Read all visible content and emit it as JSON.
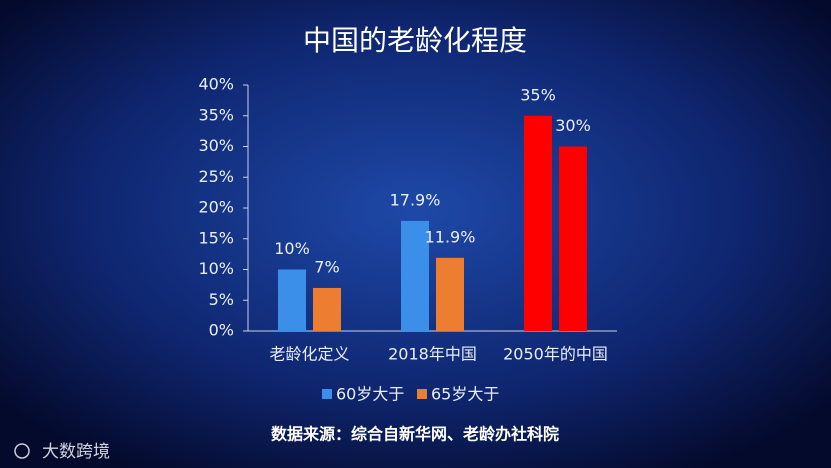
{
  "chart_data": {
    "type": "bar",
    "title": "中国的老龄化程度",
    "categories": [
      "老龄化定义",
      "2018年中国",
      "2050年的中国"
    ],
    "series": [
      {
        "name": "60岁大于",
        "color": "#3b8fe8",
        "bar_colors": [
          "#3b8fe8",
          "#3b8fe8",
          "#ff0000"
        ],
        "values": [
          10,
          17.9,
          35
        ],
        "value_labels": [
          "10%",
          "17.9%",
          "35%"
        ]
      },
      {
        "name": "65岁大于",
        "color": "#ed7d31",
        "bar_colors": [
          "#ed7d31",
          "#ed7d31",
          "#ff0000"
        ],
        "values": [
          7,
          11.9,
          30
        ],
        "value_labels": [
          "7%",
          "11.9%",
          "30%"
        ]
      }
    ],
    "ylim": [
      0,
      40
    ],
    "yticks": [
      {
        "value": 0,
        "label": "0%"
      },
      {
        "value": 5,
        "label": "5%"
      },
      {
        "value": 10,
        "label": "10%"
      },
      {
        "value": 15,
        "label": "15%"
      },
      {
        "value": 20,
        "label": "20%"
      },
      {
        "value": 25,
        "label": "25%"
      },
      {
        "value": 30,
        "label": "30%"
      },
      {
        "value": 35,
        "label": "35%"
      },
      {
        "value": 40,
        "label": "40%"
      }
    ],
    "grid": false,
    "legend": "bottom",
    "source": "数据来源：综合自新华网、老龄办社科院",
    "watermark": "大数跨境"
  }
}
